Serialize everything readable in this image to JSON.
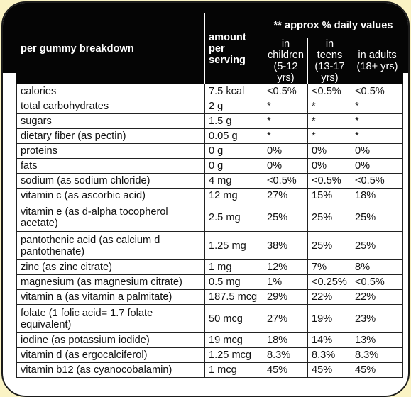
{
  "header": {
    "nutrient": "per gummy breakdown",
    "amount": "amount per serving",
    "daily_values": "** approx % daily values",
    "groups": [
      {
        "label": "in children",
        "range": "(5-12 yrs)"
      },
      {
        "label": "in teens",
        "range": "(13-17 yrs)"
      },
      {
        "label": "in adults",
        "range": "(18+ yrs)"
      }
    ]
  },
  "rows": [
    {
      "nutrient": "calories",
      "amount": "7.5 kcal",
      "children": "<0.5%",
      "teens": "<0.5%",
      "adults": "<0.5%"
    },
    {
      "nutrient": "total carbohydrates",
      "amount": "2 g",
      "children": "*",
      "teens": "*",
      "adults": "*"
    },
    {
      "nutrient": "sugars",
      "amount": "1.5 g",
      "children": "*",
      "teens": "*",
      "adults": "*"
    },
    {
      "nutrient": "dietary fiber (as pectin)",
      "amount": "0.05 g",
      "children": "*",
      "teens": "*",
      "adults": "*"
    },
    {
      "nutrient": "proteins",
      "amount": "0 g",
      "children": "0%",
      "teens": "0%",
      "adults": "0%"
    },
    {
      "nutrient": "fats",
      "amount": "0 g",
      "children": "0%",
      "teens": "0%",
      "adults": "0%"
    },
    {
      "nutrient": "sodium (as sodium chloride)",
      "amount": "4 mg",
      "children": "<0.5%",
      "teens": "<0.5%",
      "adults": "<0.5%"
    },
    {
      "nutrient": "vitamin c (as ascorbic acid)",
      "amount": "12 mg",
      "children": "27%",
      "teens": "15%",
      "adults": "18%"
    },
    {
      "nutrient": "vitamin e (as d-alpha tocopherol acetate)",
      "amount": "2.5 mg",
      "children": "25%",
      "teens": "25%",
      "adults": "25%"
    },
    {
      "nutrient": "pantothenic acid (as calcium d pantothenate)",
      "amount": "1.25 mg",
      "children": "38%",
      "teens": "25%",
      "adults": "25%"
    },
    {
      "nutrient": "zinc (as zinc citrate)",
      "amount": "1 mg",
      "children": "12%",
      "teens": "7%",
      "adults": "8%"
    },
    {
      "nutrient": "magnesium (as magnesium citrate)",
      "amount": "0.5 mg",
      "children": "1%",
      "teens": "<0.25%",
      "adults": "<0.5%"
    },
    {
      "nutrient": "vitamin a (as vitamin a palmitate)",
      "amount": "187.5 mcg",
      "children": "29%",
      "teens": "22%",
      "adults": "22%"
    },
    {
      "nutrient": "folate (1 folic acid= 1.7 folate equivalent)",
      "amount": "50 mcg",
      "children": "27%",
      "teens": "19%",
      "adults": "23%"
    },
    {
      "nutrient": "iodine (as potassium iodide)",
      "amount": "19 mcg",
      "children": "18%",
      "teens": "14%",
      "adults": "13%"
    },
    {
      "nutrient": "vitamin d (as ergocalciferol)",
      "amount": "1.25 mcg",
      "children": "8.3%",
      "teens": "8.3%",
      "adults": "8.3%"
    },
    {
      "nutrient": "vitamin b12 (as cyanocobalamin)",
      "amount": "1 mcg",
      "children": "45%",
      "teens": "45%",
      "adults": "45%"
    }
  ]
}
